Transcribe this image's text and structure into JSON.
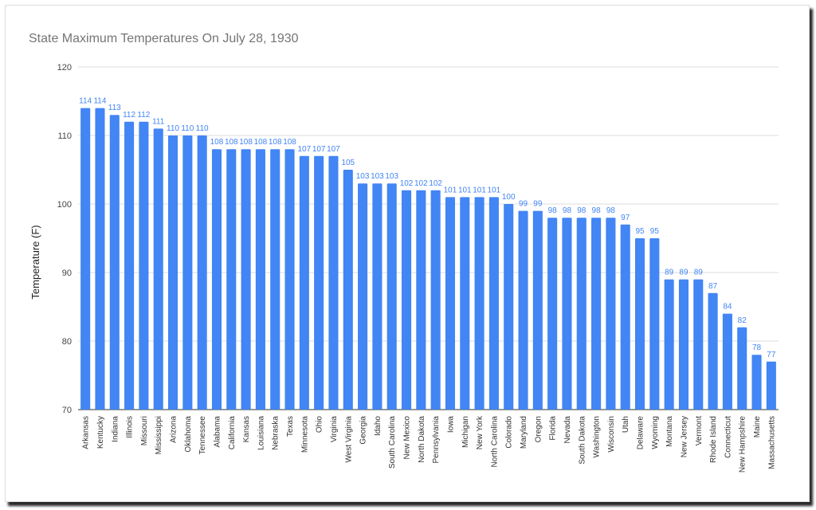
{
  "chart_data": {
    "type": "bar",
    "title": "State Maximum Temperatures On July 28, 1930",
    "xlabel": "",
    "ylabel": "Temperature (F)",
    "ylim": [
      70,
      120
    ],
    "yticks": [
      70,
      80,
      90,
      100,
      110,
      120
    ],
    "grid": true,
    "legend": "none",
    "bar_color": "#4285f4",
    "categories": [
      "Arkansas",
      "Kentucky",
      "Indiana",
      "Illinois",
      "Missouri",
      "Mississippi",
      "Arizona",
      "Oklahoma",
      "Tennessee",
      "Alabama",
      "California",
      "Kansas",
      "Louisiana",
      "Nebraska",
      "Texas",
      "Minnesota",
      "Ohio",
      "Virginia",
      "West Virginia",
      "Georgia",
      "Idaho",
      "South Carolina",
      "New Mexico",
      "North Dakota",
      "Pennsylvania",
      "Iowa",
      "Michigan",
      "New York",
      "North Carolina",
      "Colorado",
      "Maryland",
      "Oregon",
      "Florida",
      "Nevada",
      "South Dakota",
      "Washington",
      "Wisconsin",
      "Utah",
      "Delaware",
      "Wyoming",
      "Montana",
      "New Jersey",
      "Vermont",
      "Rhode Island",
      "Connecticut",
      "New Hampshire",
      "Maine",
      "Massachusetts"
    ],
    "values": [
      114,
      114,
      113,
      112,
      112,
      111,
      110,
      110,
      110,
      108,
      108,
      108,
      108,
      108,
      108,
      107,
      107,
      107,
      105,
      103,
      103,
      103,
      102,
      102,
      102,
      101,
      101,
      101,
      101,
      100,
      99,
      99,
      98,
      98,
      98,
      98,
      98,
      97,
      95,
      95,
      89,
      89,
      89,
      87,
      84,
      82,
      78,
      77
    ]
  }
}
